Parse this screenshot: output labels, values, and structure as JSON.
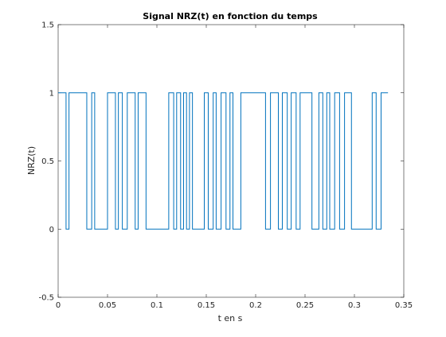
{
  "chart_data": {
    "type": "line",
    "title": "Signal NRZ(t) en fonction du temps",
    "xlabel": "t en s",
    "ylabel": "NRZ(t)",
    "xlim": [
      0,
      0.35
    ],
    "ylim": [
      -0.5,
      1.5
    ],
    "x_ticks": [
      0,
      0.05,
      0.1,
      0.15,
      0.2,
      0.25,
      0.3,
      0.35
    ],
    "x_tick_labels": [
      "0",
      "0.05",
      "0.1",
      "0.15",
      "0.2",
      "0.25",
      "0.3",
      "0.35"
    ],
    "y_ticks": [
      -0.5,
      0,
      0.5,
      1,
      1.5
    ],
    "y_tick_labels": [
      "-0.5",
      "0",
      "0.5",
      "1",
      "1.5"
    ],
    "grid": false,
    "line_color": "#0072bd",
    "series": [
      {
        "step": "post",
        "x": [
          0,
          0.008,
          0.011,
          0.029,
          0.034,
          0.037,
          0.05,
          0.058,
          0.061,
          0.065,
          0.07,
          0.078,
          0.081,
          0.089,
          0.1,
          0.112,
          0.117,
          0.12,
          0.124,
          0.127,
          0.13,
          0.133,
          0.136,
          0.148,
          0.152,
          0.157,
          0.16,
          0.165,
          0.17,
          0.174,
          0.177,
          0.185,
          0.195,
          0.21,
          0.215,
          0.223,
          0.227,
          0.232,
          0.236,
          0.241,
          0.245,
          0.257,
          0.264,
          0.268,
          0.272,
          0.275,
          0.28,
          0.285,
          0.29,
          0.297,
          0.318,
          0.322,
          0.327,
          0.334
        ],
        "y": [
          1,
          0,
          1,
          0,
          1,
          0,
          1,
          0,
          1,
          0,
          1,
          0,
          1,
          0,
          0,
          1,
          0,
          1,
          0,
          1,
          0,
          1,
          0,
          1,
          0,
          1,
          0,
          1,
          0,
          1,
          0,
          1,
          1,
          0,
          1,
          0,
          1,
          0,
          1,
          0,
          1,
          0,
          1,
          0,
          1,
          0,
          1,
          0,
          1,
          0,
          1,
          0,
          1,
          1
        ]
      }
    ]
  }
}
